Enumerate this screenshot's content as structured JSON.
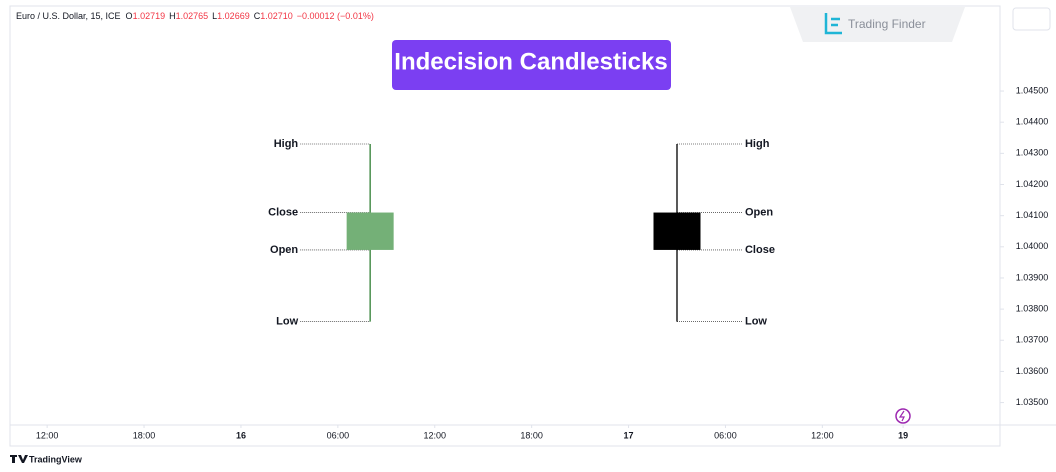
{
  "chart_data": {
    "type": "candlestick",
    "header": {
      "symbol": "Euro / U.S. Dollar, 15, ICE",
      "ohlc": [
        {
          "label": "O",
          "value": "1.02719"
        },
        {
          "label": "H",
          "value": "1.02765"
        },
        {
          "label": "L",
          "value": "1.02669"
        },
        {
          "label": "C",
          "value": "1.02710"
        }
      ],
      "change": "−0.00012 (−0.01%)"
    },
    "title": "Indecision Candlesticks",
    "watermark": "Trading Finder",
    "footer": "TradingView",
    "candles": [
      {
        "x": 20,
        "open": 1.0399,
        "high": 1.0433,
        "low": 1.0376,
        "close": 1.0411,
        "color": "#74b077",
        "wick_color": "#2e7d32",
        "annotations_side": "left",
        "annotations": [
          {
            "text": "High",
            "at": "high"
          },
          {
            "text": "Close",
            "at": "close"
          },
          {
            "text": "Open",
            "at": "open"
          },
          {
            "text": "Low",
            "at": "low"
          }
        ]
      },
      {
        "x": 39,
        "open": 1.0411,
        "high": 1.0433,
        "low": 1.0376,
        "close": 1.0399,
        "color": "#000000",
        "wick_color": "#000000",
        "annotations_side": "right",
        "annotations": [
          {
            "text": "High",
            "at": "high"
          },
          {
            "text": "Open",
            "at": "open"
          },
          {
            "text": "Close",
            "at": "close"
          },
          {
            "text": "Low",
            "at": "low"
          }
        ]
      }
    ],
    "xlim": [
      -2.3,
      59
    ],
    "xticks": [
      {
        "value": 0,
        "label": "12:00"
      },
      {
        "value": 6,
        "label": "18:00"
      },
      {
        "value": 12,
        "label": "16"
      },
      {
        "value": 18,
        "label": "06:00"
      },
      {
        "value": 24,
        "label": "12:00"
      },
      {
        "value": 30,
        "label": "18:00"
      },
      {
        "value": 36,
        "label": "17"
      },
      {
        "value": 42,
        "label": "06:00"
      },
      {
        "value": 48,
        "label": "12:00"
      },
      {
        "value": 53,
        "label": "19"
      }
    ],
    "bold_xticks": [
      "16",
      "17",
      "19"
    ],
    "ylim": [
      1.03428,
      1.04773
    ],
    "yticks": [
      {
        "value": 1.045,
        "label": "1.04500"
      },
      {
        "value": 1.044,
        "label": "1.04400"
      },
      {
        "value": 1.043,
        "label": "1.04300"
      },
      {
        "value": 1.042,
        "label": "1.04200"
      },
      {
        "value": 1.041,
        "label": "1.04100"
      },
      {
        "value": 1.04,
        "label": "1.04000"
      },
      {
        "value": 1.039,
        "label": "1.03900"
      },
      {
        "value": 1.038,
        "label": "1.03800"
      },
      {
        "value": 1.037,
        "label": "1.03700"
      },
      {
        "value": 1.036,
        "label": "1.03600"
      },
      {
        "value": 1.035,
        "label": "1.03500"
      }
    ],
    "grid": false
  }
}
